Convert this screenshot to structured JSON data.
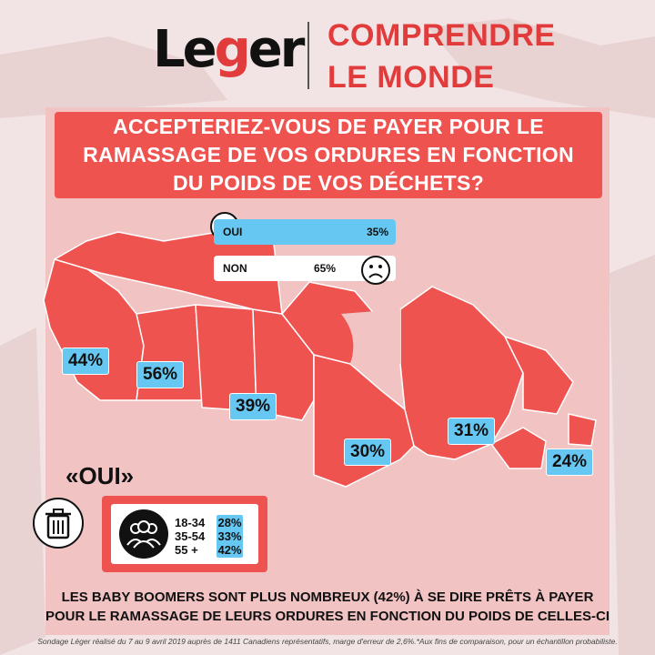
{
  "header": {
    "logo_text_prefix": "Le",
    "logo_text_accent": "g",
    "logo_text_suffix": "er",
    "tagline_line1": "COMPRENDRE",
    "tagline_line2": "LE MONDE"
  },
  "question": {
    "line1": "ACCEPTERIEZ-VOUS DE PAYER POUR LE",
    "line2": "RAMASSAGE DE VOS ORDURES EN FONCTION",
    "line3": "DU POIDS DE VOS DÉCHETS?"
  },
  "answers": [
    {
      "label": "OUI",
      "value": "35%",
      "fraction": 0.35
    },
    {
      "label": "NON",
      "value": "65%",
      "fraction": 0.65
    }
  ],
  "provinces": [
    {
      "name": "british-columbia",
      "value": "44%"
    },
    {
      "name": "alberta",
      "value": "56%"
    },
    {
      "name": "manitoba-saskatchewan",
      "value": "39%"
    },
    {
      "name": "ontario",
      "value": "30%"
    },
    {
      "name": "quebec",
      "value": "31%"
    },
    {
      "name": "atlantic",
      "value": "24%"
    }
  ],
  "oui_section": {
    "title": "«OUI»",
    "ages": [
      {
        "range": "18-34",
        "value": "28%"
      },
      {
        "range": "35-54",
        "value": "33%"
      },
      {
        "range": "55 +",
        "value": "42%"
      }
    ]
  },
  "conclusion": {
    "line1": "LES BABY BOOMERS SONT PLUS NOMBREUX (42%) À SE DIRE PRÊTS À PAYER",
    "line2": "POUR LE RAMASSAGE DE LEURS ORDURES EN FONCTION DU POIDS DE CELLES-CI"
  },
  "footnote": "Sondage Léger réalisé du 7 au 9 avril 2019 auprès de 1411 Canadiens représentatifs, marge d'erreur de 2,6%.*Aux fins de comparaison, pour un échantillon probabiliste.",
  "colors": {
    "accent_red": "#ef5350",
    "highlight_blue": "#66c8f2",
    "panel_pink": "#f1c3c3"
  }
}
